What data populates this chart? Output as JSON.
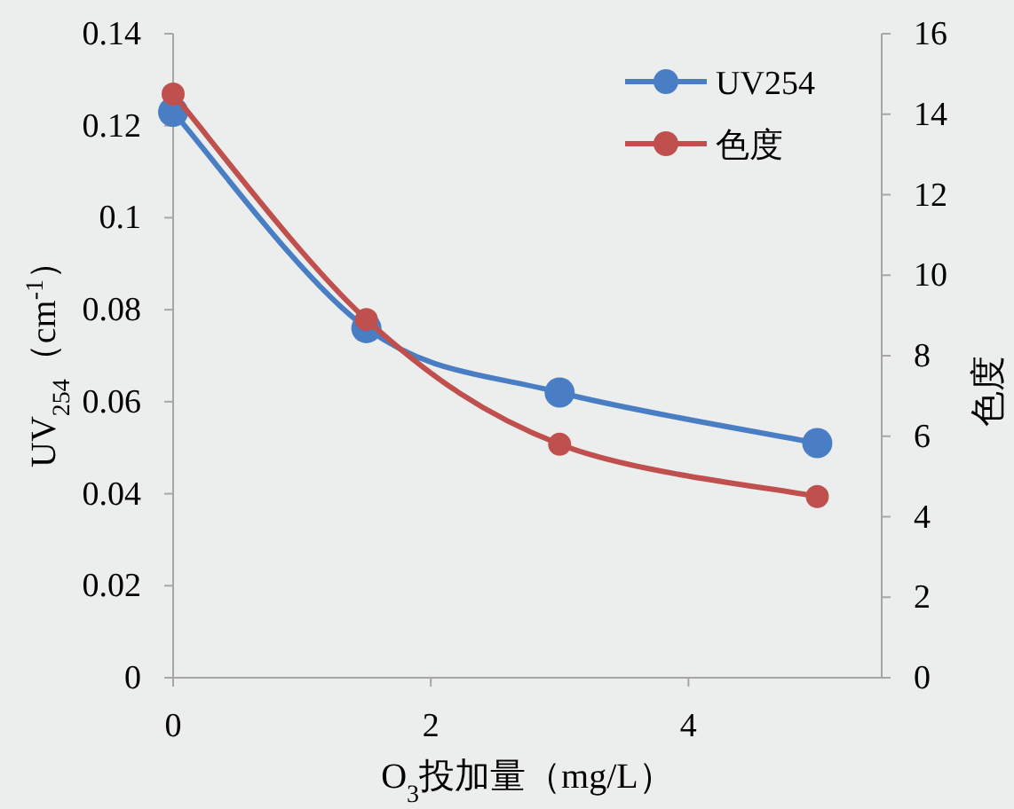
{
  "chart_data": {
    "type": "line",
    "xlabel": "O$_{3}$投加量（mg/L）",
    "ylabel": "UV$_{254}$（cm$^{-1}$）",
    "y2label": "色度",
    "x": [
      0,
      1.5,
      3,
      5
    ],
    "xlim": [
      0,
      5.5
    ],
    "xticks": [
      0,
      2,
      4
    ],
    "ylim": [
      0,
      0.14
    ],
    "yticks": [
      0,
      0.02,
      0.04,
      0.06,
      0.08,
      0.1,
      0.12,
      0.14
    ],
    "y2lim": [
      0,
      16
    ],
    "y2ticks": [
      0,
      2,
      4,
      6,
      8,
      10,
      12,
      14,
      16
    ],
    "series": [
      {
        "name": "UV254",
        "color": "#4a7ec4",
        "values": [
          0.123,
          0.076,
          0.062,
          0.051
        ]
      },
      {
        "name": "色度",
        "color": "#c0504d",
        "axis": "y2",
        "values": [
          14.5,
          8.9,
          5.8,
          4.5
        ]
      }
    ],
    "marker": "circle",
    "legend": "top right",
    "grid": false
  }
}
